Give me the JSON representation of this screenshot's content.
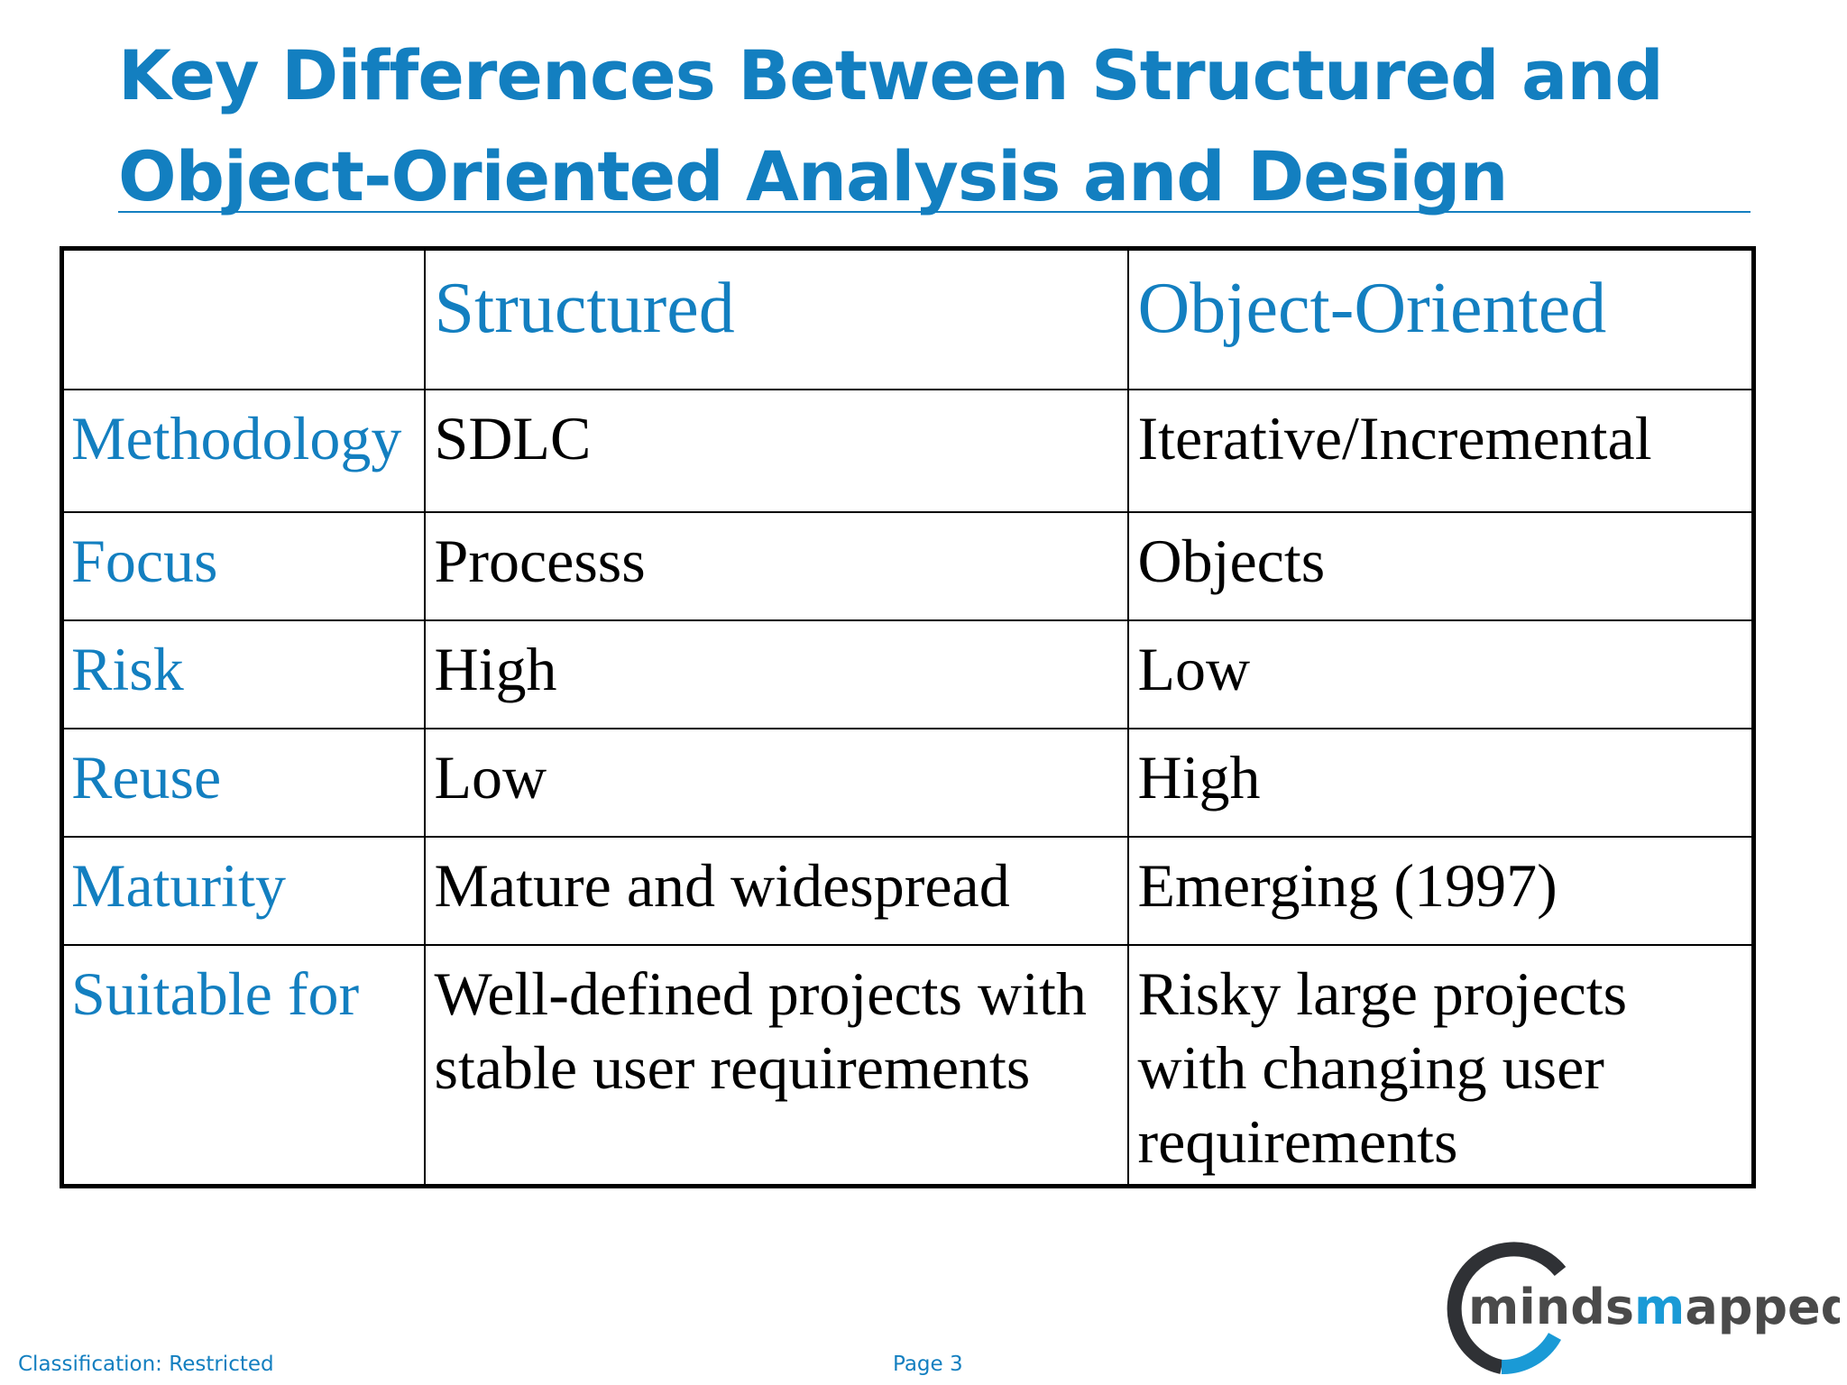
{
  "slide": {
    "title_line1": "Key Differences Between Structured and",
    "title_line2": "Object-Oriented Analysis and Design"
  },
  "table": {
    "headers": [
      "",
      "Structured",
      "Object-Oriented"
    ],
    "rows": [
      {
        "label": "Methodology",
        "structured": "SDLC",
        "object_oriented": "Iterative/Incremental"
      },
      {
        "label": "Focus",
        "structured": "Processs",
        "object_oriented": "Objects"
      },
      {
        "label": "Risk",
        "structured": "High",
        "object_oriented": "Low"
      },
      {
        "label": "Reuse",
        "structured": "Low",
        "object_oriented": "High"
      },
      {
        "label": "Maturity",
        "structured": "Mature and widespread",
        "object_oriented": "Emerging (1997)"
      },
      {
        "label": "Suitable for",
        "structured": "Well-defined projects with stable user requirements",
        "object_oriented": "Risky large projects with changing user requirements"
      }
    ]
  },
  "footer": {
    "classification": "Classification: Restricted",
    "page": "Page 3"
  },
  "logo": {
    "text_prefix": "minds",
    "text_highlight": "m",
    "text_suffix": "apped",
    "ring_dark_color": "#2f3135",
    "ring_accent_color": "#1a9ad6",
    "text_color": "#4a4a4a"
  },
  "colors": {
    "accent": "#137fc0",
    "table_border": "#000000"
  }
}
